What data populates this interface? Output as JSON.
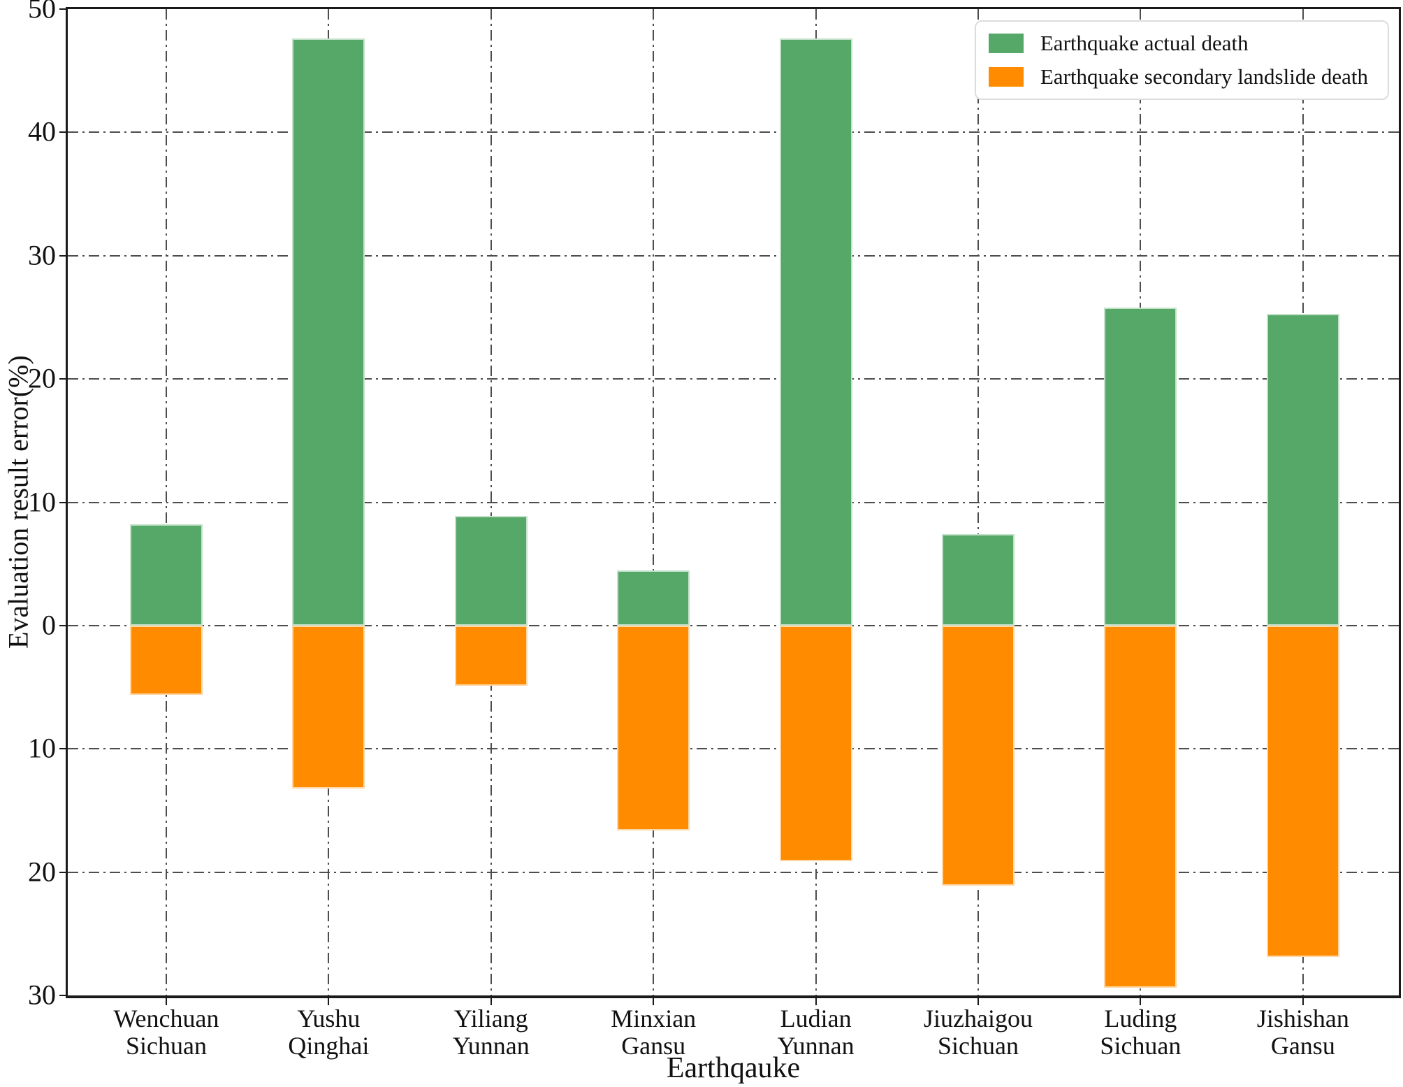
{
  "figure": {
    "background": "#ffffff",
    "axis_color": "#1a1a1a",
    "grid_color": "#4d4d4d"
  },
  "chart_data": {
    "type": "bar",
    "subtype": "diverging-stacked",
    "title": "",
    "xlabel": "Earthqauke",
    "ylabel": "Evaluation result error(%)",
    "ylim": [
      -30,
      50
    ],
    "yticks": [
      50,
      40,
      30,
      20,
      10,
      0,
      -10,
      -20,
      -30
    ],
    "ytick_labels": [
      "50",
      "40",
      "30",
      "20",
      "10",
      "0",
      "10",
      "20",
      "30"
    ],
    "grid": {
      "style": "dash-dot",
      "axis": "both"
    },
    "legend_position": "upper right",
    "categories": [
      "Wenchuan\nSichuan",
      "Yushu\nQinghai",
      "Yiliang\nYunnan",
      "Minxian\nGansu",
      "Ludian\nYunnan",
      "Jiuzhaigou\nSichuan",
      "Luding\nSichuan",
      "Jishishan\nGansu"
    ],
    "series": [
      {
        "name": "Earthquake actual death",
        "color": "#56a868",
        "values": [
          8.2,
          47.6,
          8.9,
          4.5,
          47.6,
          7.4,
          25.8,
          25.3
        ]
      },
      {
        "name": "Earthquake secondary landslide death",
        "color": "#ff8c00",
        "values": [
          -5.6,
          -13.2,
          -4.9,
          -16.6,
          -19.1,
          -21.1,
          -29.4,
          -26.9
        ]
      }
    ]
  }
}
